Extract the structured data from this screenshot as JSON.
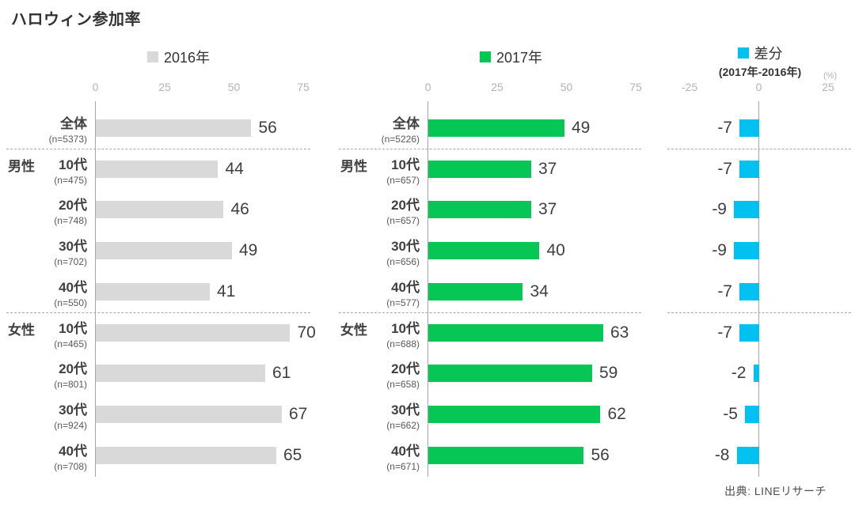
{
  "source": "出典: LINEリサーチ",
  "chart_data": {
    "type": "bar",
    "orientation": "horizontal",
    "title": "ハロウィン参加率",
    "unit": "(%)",
    "legend_position": "top",
    "grid": false,
    "rows": [
      {
        "group": "",
        "label": "全体"
      },
      {
        "group": "男性",
        "label": "10代"
      },
      {
        "group": "",
        "label": "20代"
      },
      {
        "group": "",
        "label": "30代"
      },
      {
        "group": "",
        "label": "40代"
      },
      {
        "group": "女性",
        "label": "10代"
      },
      {
        "group": "",
        "label": "20代"
      },
      {
        "group": "",
        "label": "30代"
      },
      {
        "group": "",
        "label": "40代"
      }
    ],
    "separators_after": [
      0,
      4
    ],
    "series": [
      {
        "name": "2016年",
        "color": "#D9D9D9",
        "values": [
          56,
          44,
          46,
          49,
          41,
          70,
          61,
          67,
          65
        ],
        "n": [
          "(n=5373)",
          "(n=475)",
          "(n=748)",
          "(n=702)",
          "(n=550)",
          "(n=465)",
          "(n=801)",
          "(n=924)",
          "(n=708)"
        ],
        "xlim": [
          0,
          75
        ],
        "ticks": [
          0,
          25,
          50,
          75
        ]
      },
      {
        "name": "2017年",
        "color": "#06C755",
        "values": [
          49,
          37,
          37,
          40,
          34,
          63,
          59,
          62,
          56
        ],
        "n": [
          "(n=5226)",
          "(n=657)",
          "(n=657)",
          "(n=656)",
          "(n=577)",
          "(n=688)",
          "(n=658)",
          "(n=662)",
          "(n=671)"
        ],
        "xlim": [
          0,
          75
        ],
        "ticks": [
          0,
          25,
          50,
          75
        ]
      },
      {
        "name": "差分",
        "subtitle": "(2017年-2016年)",
        "color": "#00C2F0",
        "values": [
          -7,
          -7,
          -9,
          -9,
          -7,
          -7,
          -2,
          -5,
          -8
        ],
        "xlim": [
          -25,
          25
        ],
        "ticks": [
          -25,
          0,
          25
        ]
      }
    ]
  }
}
